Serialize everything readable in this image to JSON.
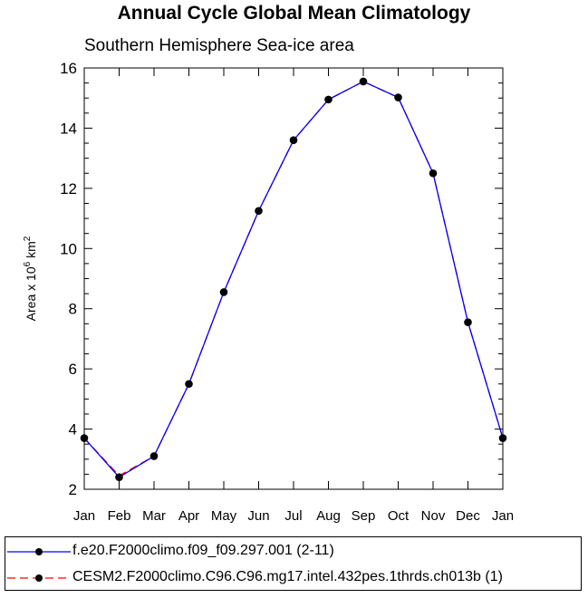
{
  "title": "Annual Cycle Global Mean Climatology",
  "chart_data": {
    "type": "line",
    "subtitle": "Southern Hemisphere Sea-ice area",
    "ylabel_parts": {
      "base": "Area x 10",
      "exp": "6",
      "unit": " km",
      "unit_exp": "2"
    },
    "xlabel": "",
    "categories": [
      "Jan",
      "Feb",
      "Mar",
      "Apr",
      "May",
      "Jun",
      "Jul",
      "Aug",
      "Sep",
      "Oct",
      "Nov",
      "Dec",
      "Jan"
    ],
    "ylim": [
      2,
      16
    ],
    "yticks": [
      2,
      4,
      6,
      8,
      10,
      12,
      14,
      16
    ],
    "series": [
      {
        "name": "f.e20.F2000climo.f09_f09.297.001 (2-11)",
        "color": "#0000ff",
        "dash": "solid",
        "values": [
          3.7,
          2.4,
          3.1,
          5.5,
          8.55,
          11.25,
          13.6,
          14.95,
          15.55,
          15.02,
          12.5,
          7.55,
          3.7
        ]
      },
      {
        "name": "CESM2.F2000climo.C96.C96.mg17.intel.432pes.1thrds.ch013b (1)",
        "color": "#ff0000",
        "dash": "dashed",
        "values": [
          3.7,
          2.45,
          3.1,
          5.5,
          8.55,
          11.25,
          13.6,
          14.95,
          15.55,
          15.02,
          12.5,
          7.55,
          3.7
        ]
      }
    ],
    "marker_color": "#000000",
    "grid": false,
    "legend_position": "bottom"
  }
}
